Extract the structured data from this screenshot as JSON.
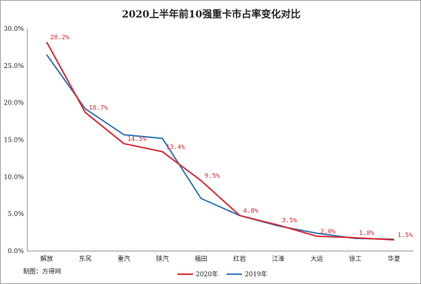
{
  "chart_data": {
    "type": "line",
    "title": "2020上半年前10强重卡市占率变化对比",
    "categories": [
      "解放",
      "东风",
      "重汽",
      "陕汽",
      "福田",
      "红岩",
      "江淮",
      "大运",
      "徐工",
      "华菱"
    ],
    "series": [
      {
        "name": "2020年",
        "color": "#e0262f",
        "values": [
          28.2,
          18.7,
          14.5,
          13.4,
          9.5,
          4.8,
          3.5,
          2.0,
          1.8,
          1.5
        ],
        "data_labels": [
          "28.2%",
          "18.7%",
          "14.5%",
          "13.4%",
          "9.5%",
          "4.8%",
          "3.5%",
          "2.0%",
          "1.8%",
          "1.5%"
        ]
      },
      {
        "name": "2019年",
        "color": "#2e75b6",
        "values": [
          26.5,
          19.2,
          15.7,
          15.2,
          7.1,
          4.8,
          3.4,
          2.4,
          1.7,
          1.6
        ]
      }
    ],
    "y_ticks": [
      "0.0%",
      "5.0%",
      "10.0%",
      "15.0%",
      "20.0%",
      "25.0%",
      "30.0%"
    ],
    "ylim": [
      0,
      30
    ],
    "y_tick_values": [
      0,
      5,
      10,
      15,
      20,
      25,
      30
    ],
    "grid": false,
    "legend_position": "bottom-center",
    "source_note": "制图：方得网"
  }
}
